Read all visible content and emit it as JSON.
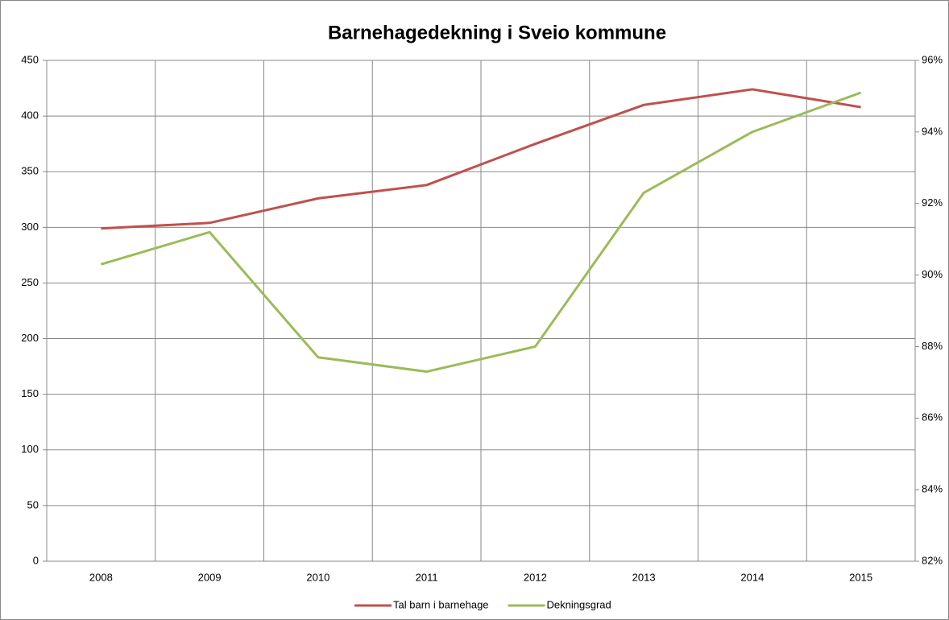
{
  "chart_data": {
    "type": "line",
    "title": "Barnehagedekning i Sveio kommune",
    "categories": [
      "2008",
      "2009",
      "2010",
      "2011",
      "2012",
      "2013",
      "2014",
      "2015"
    ],
    "series": [
      {
        "name": "Tal barn i barnehage",
        "color": "#c0504d",
        "values": [
          299,
          304,
          326,
          338,
          375,
          410,
          424,
          408
        ]
      },
      {
        "name": "Dekningsgrad",
        "color": "#9bbb59",
        "axis": "y2",
        "values": [
          90.3,
          91.2,
          87.7,
          87.3,
          88.0,
          92.3,
          94.0,
          95.1
        ]
      }
    ],
    "ylim": [
      0,
      450
    ],
    "yticks": [
      0,
      50,
      100,
      150,
      200,
      250,
      300,
      350,
      400,
      450
    ],
    "y2lim": [
      82,
      96
    ],
    "y2ticks": [
      {
        "value": 82,
        "label": "82%"
      },
      {
        "value": 84,
        "label": "84%"
      },
      {
        "value": 86,
        "label": "86%"
      },
      {
        "value": 88,
        "label": "88%"
      },
      {
        "value": 90,
        "label": "90%"
      },
      {
        "value": 92,
        "label": "92%"
      },
      {
        "value": 94,
        "label": "94%"
      },
      {
        "value": 96,
        "label": "96%"
      }
    ],
    "grid": true,
    "legend": "bottom"
  }
}
